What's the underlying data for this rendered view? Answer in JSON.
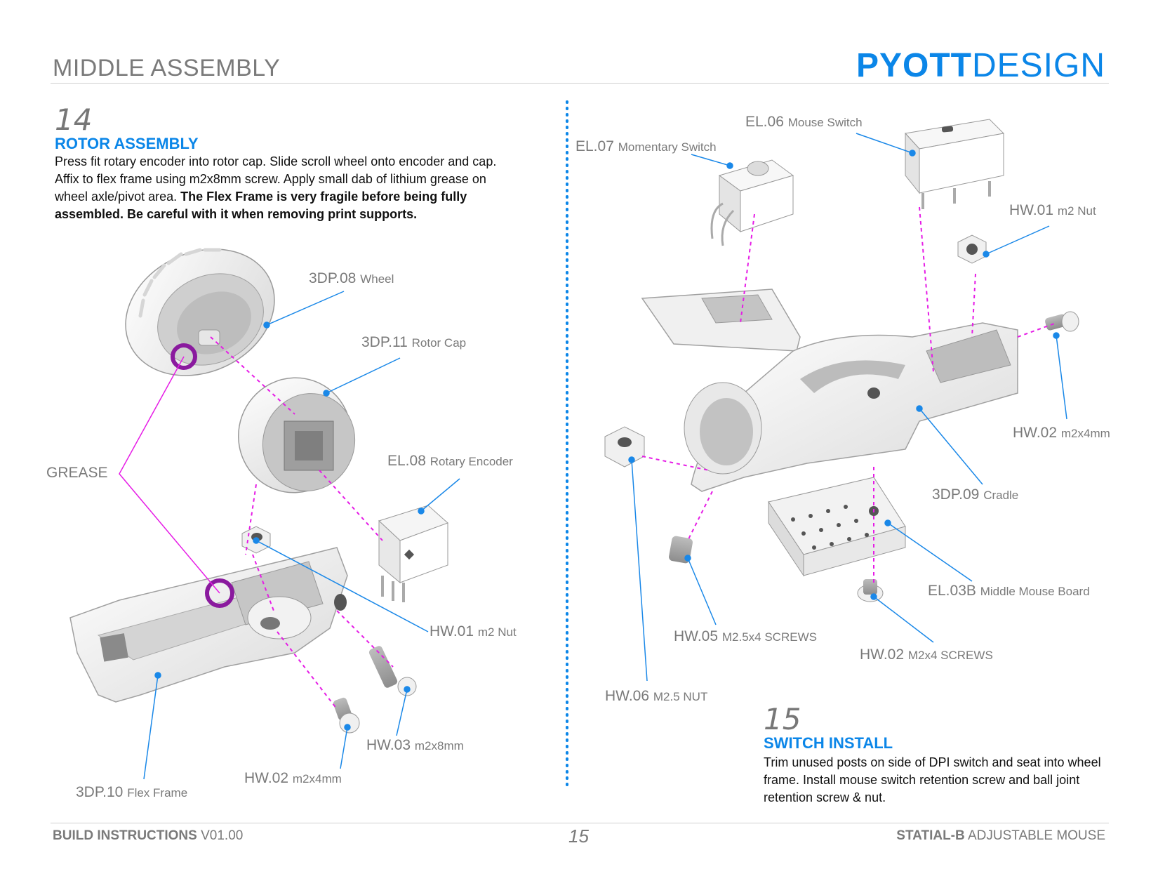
{
  "header": {
    "section_title": "MIDDLE ASSEMBLY",
    "brand_bold": "PYOTT",
    "brand_light": "DESIGN"
  },
  "step14": {
    "number": "14",
    "title": "ROTOR ASSEMBLY",
    "body": "Press fit rotary encoder into rotor cap. Slide scroll wheel onto encoder and cap. Affix to flex frame using m2x8mm screw. Apply small dab of lithium grease on wheel axle/pivot area.",
    "body_bold": "The Flex Frame is very fragile before being fully assembled. Be careful with it when removing print supports."
  },
  "step15": {
    "number": "15",
    "title": "SWITCH INSTALL",
    "body": "Trim unused posts on side of DPI switch and seat into wheel frame. Install mouse switch retention screw and ball joint retention screw & nut."
  },
  "labels": {
    "wheel": {
      "code": "3DP.08",
      "desc": "Wheel"
    },
    "rotor_cap": {
      "code": "3DP.11",
      "desc": "Rotor Cap"
    },
    "grease": "GREASE",
    "rotary_encoder": {
      "code": "EL.08",
      "desc": "Rotary Encoder"
    },
    "hw01_left": {
      "code": "HW.01",
      "desc": "m2 Nut"
    },
    "hw03": {
      "code": "HW.03",
      "desc": "m2x8mm"
    },
    "hw02_left": {
      "code": "HW.02",
      "desc": "m2x4mm"
    },
    "flex_frame": {
      "code": "3DP.10",
      "desc": "Flex Frame"
    },
    "mouse_switch": {
      "code": "EL.06",
      "desc": "Mouse Switch"
    },
    "momentary_switch": {
      "code": "EL.07",
      "desc": "Momentary Switch"
    },
    "hw01_right": {
      "code": "HW.01",
      "desc": "m2 Nut"
    },
    "hw02_right": {
      "code": "HW.02",
      "desc": "m2x4mm"
    },
    "cradle": {
      "code": "3DP.09",
      "desc": "Cradle"
    },
    "middle_board": {
      "code": "EL.03B",
      "desc": "Middle Mouse Board"
    },
    "hw05": {
      "code": "HW.05",
      "desc": "M2.5x4 SCREWS"
    },
    "hw02_screws": {
      "code": "HW.02",
      "desc": "M2x4 SCREWS"
    },
    "hw06": {
      "code": "HW.06",
      "desc": "M2.5 NUT"
    }
  },
  "footer": {
    "left_bold": "BUILD INSTRUCTIONS",
    "left_version": "V01.00",
    "page": "15",
    "right_bold": "STATIAL-B",
    "right_rest": "ADJUSTABLE MOUSE"
  },
  "colors": {
    "accent_blue": "#0b86e8",
    "guide_magenta": "#e61ce6",
    "grease_purple": "#8a1a9e",
    "label_gray": "#7a7a7a"
  }
}
